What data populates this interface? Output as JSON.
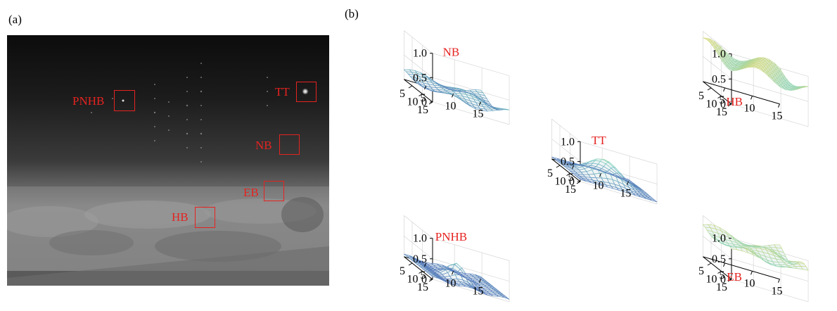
{
  "panel_a": {
    "label": "(a)"
  },
  "panel_b": {
    "label": "(b)"
  },
  "colors": {
    "annotation": "#e52320",
    "surface_low": "#4a5fb8",
    "surface_mid": "#7fd3c5",
    "surface_high": "#f2dd6a"
  },
  "regions": {
    "pnhb": "PNHB",
    "tt": "TT",
    "nb": "NB",
    "eb": "EB",
    "hb": "HB"
  },
  "axis_ticks": {
    "z": [
      "0",
      "0.5",
      "1.0"
    ],
    "x": [
      "5",
      "10",
      "15"
    ],
    "y": [
      "15",
      "10",
      "5"
    ]
  },
  "chart_data": [
    {
      "type": "surface",
      "title": "NB",
      "zlim": [
        0,
        1.0
      ],
      "xlim": [
        1,
        15
      ],
      "ylim": [
        1,
        15
      ],
      "grid": true,
      "surface_level": "low ~0.1-0.25"
    },
    {
      "type": "surface",
      "title": "HB",
      "zlim": [
        0,
        1.0
      ],
      "xlim": [
        1,
        15
      ],
      "ylim": [
        1,
        15
      ],
      "grid": true,
      "surface_level": "high ~0.7-0.95"
    },
    {
      "type": "surface",
      "title": "TT",
      "zlim": [
        0,
        1.0
      ],
      "xlim": [
        1,
        15
      ],
      "ylim": [
        1,
        15
      ],
      "grid": true,
      "surface_level": "central peak ~0.55"
    },
    {
      "type": "surface",
      "title": "PNHB",
      "zlim": [
        0,
        1.0
      ],
      "xlim": [
        1,
        15
      ],
      "ylim": [
        1,
        15
      ],
      "grid": true,
      "surface_level": "small central peak ~0.3"
    },
    {
      "type": "surface",
      "title": "EB",
      "zlim": [
        0,
        1.0
      ],
      "xlim": [
        1,
        15
      ],
      "ylim": [
        1,
        15
      ],
      "grid": true,
      "surface_level": "high ~0.6-0.9"
    }
  ]
}
